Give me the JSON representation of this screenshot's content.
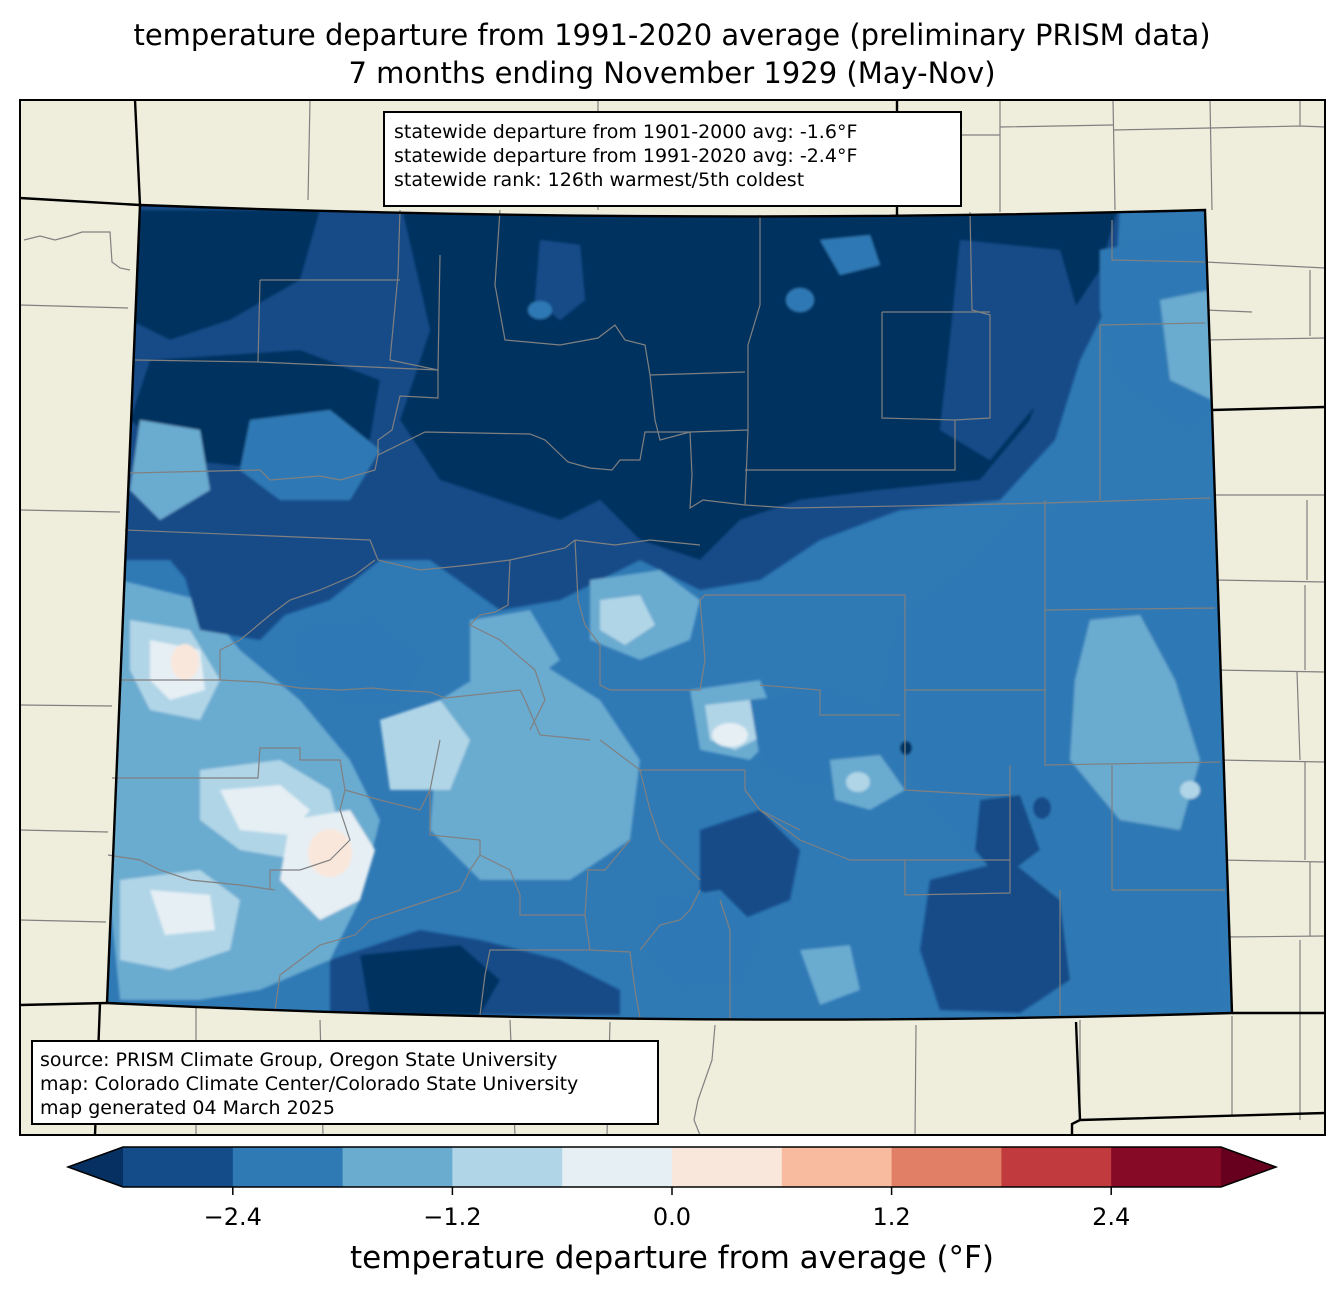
{
  "title": {
    "line1": "temperature departure from 1991-2020 average (preliminary PRISM data)",
    "line2": "7 months ending November 1929 (May-Nov)"
  },
  "stats": {
    "line1": "statewide departure from 1901-2000 avg: -1.6°F",
    "line2": "statewide departure from 1991-2020 avg: -2.4°F",
    "line3": "statewide rank: 126th warmest/5th coldest"
  },
  "source": {
    "line1": "source: PRISM Climate Group, Oregon State University",
    "line2": "map: Colorado Climate Center/Colorado State University",
    "line3": "map generated 04 March 2025"
  },
  "colorbar": {
    "label": "temperature departure from average (°F)",
    "ticks": [
      "−2.4",
      "−1.2",
      "0.0",
      "1.2",
      "2.4"
    ],
    "tick_values": [
      -2.4,
      -1.2,
      0.0,
      1.2,
      2.4
    ],
    "range": [
      -3.0,
      3.0
    ],
    "step": 0.6,
    "colors": [
      "#053061",
      "#134c88",
      "#2f79b5",
      "#6aabd0",
      "#b0d5e7",
      "#e6eff4",
      "#fae7dc",
      "#f8bba0",
      "#e17e66",
      "#c13a3e",
      "#860a26",
      "#67001f"
    ]
  },
  "map_colors": {
    "land": "#efeedd",
    "state_border": "#000000",
    "county_border": "#808080"
  }
}
